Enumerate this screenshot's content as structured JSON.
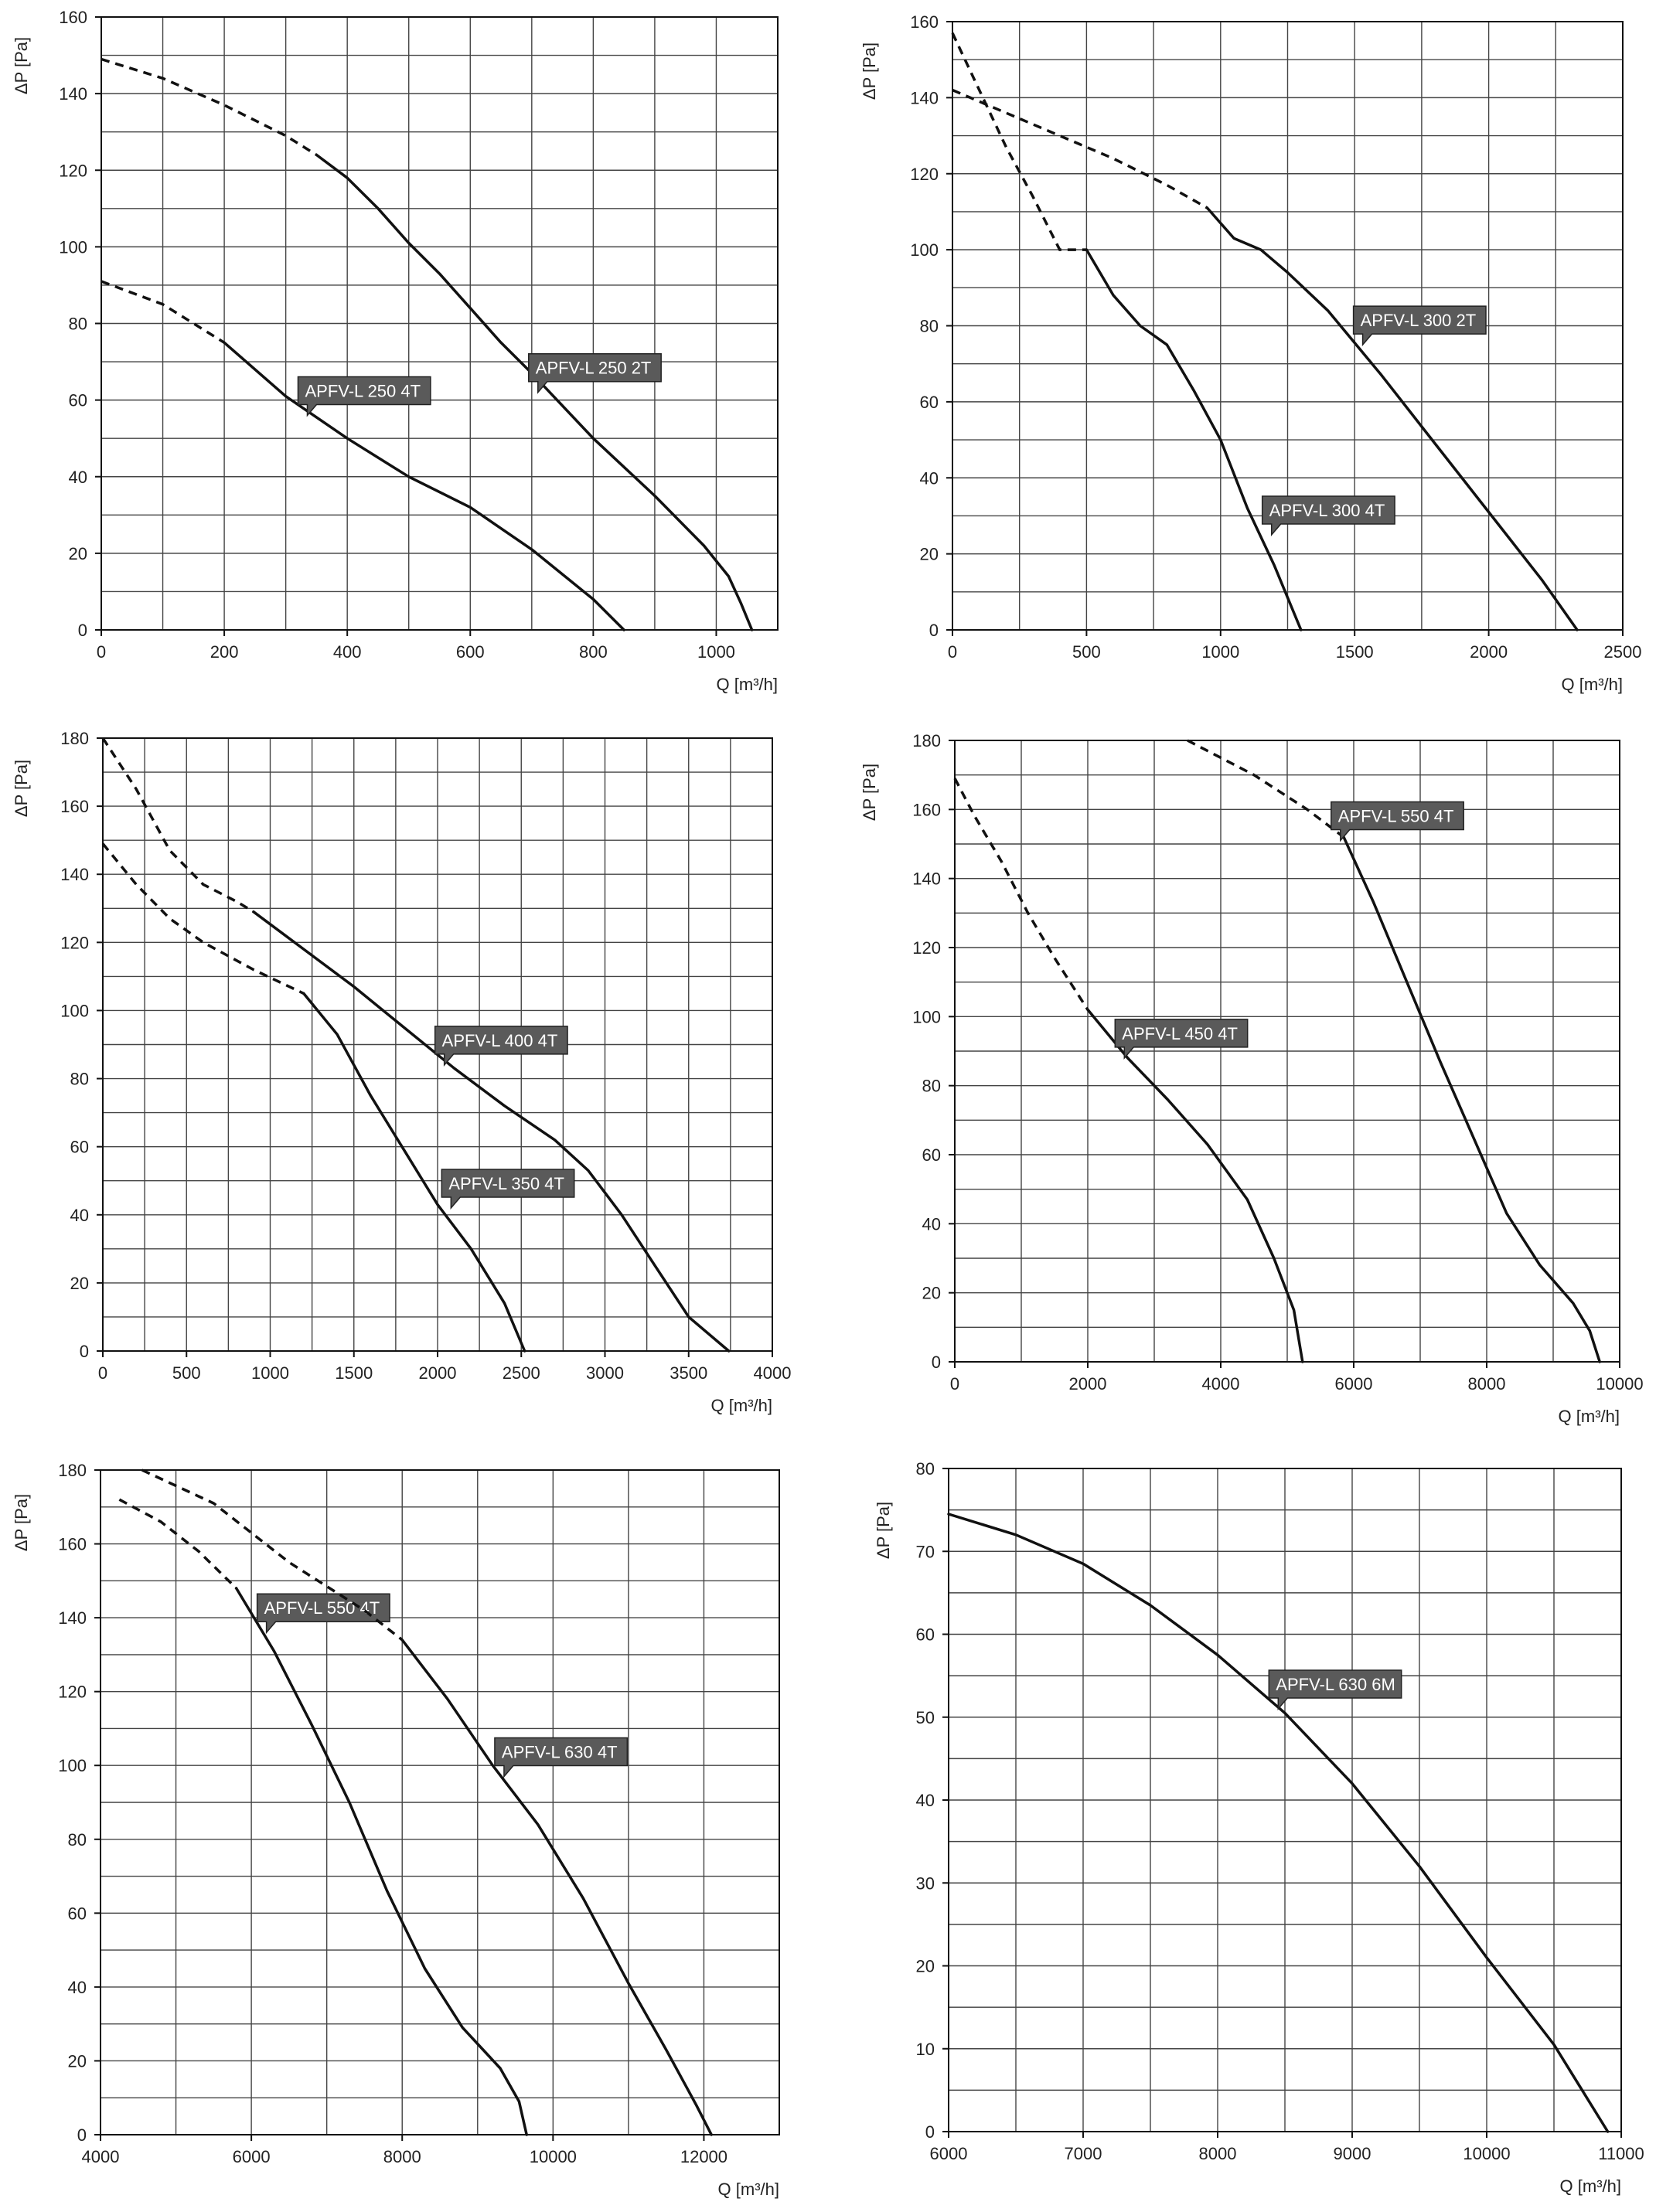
{
  "chart_data": [
    {
      "type": "line",
      "xlabel": "Q [m³/h]",
      "ylabel": "ΔP [Pa]",
      "xlim": [
        0,
        1100
      ],
      "ylim": [
        0,
        160
      ],
      "xticks": [
        0,
        200,
        400,
        600,
        800,
        1000
      ],
      "yticks": [
        0,
        20,
        40,
        60,
        80,
        100,
        120,
        140,
        160
      ],
      "grid": true,
      "series": [
        {
          "name": "APFV-L 250 2T",
          "dashed_points": [
            [
              0,
              149
            ],
            [
              100,
              144
            ],
            [
              200,
              137
            ],
            [
              300,
              129
            ],
            [
              350,
              124
            ]
          ],
          "points": [
            [
              350,
              124
            ],
            [
              400,
              118
            ],
            [
              450,
              110
            ],
            [
              500,
              101
            ],
            [
              550,
              93
            ],
            [
              600,
              84
            ],
            [
              650,
              75
            ],
            [
              700,
              67
            ],
            [
              800,
              50
            ],
            [
              900,
              35
            ],
            [
              980,
              22
            ],
            [
              1020,
              14
            ],
            [
              1040,
              7
            ],
            [
              1058,
              0
            ]
          ],
          "label_at": [
            710,
            62
          ]
        },
        {
          "name": "APFV-L 250 4T",
          "dashed_points": [
            [
              0,
              91
            ],
            [
              100,
              85
            ],
            [
              200,
              75
            ]
          ],
          "points": [
            [
              200,
              75
            ],
            [
              300,
              61
            ],
            [
              400,
              50
            ],
            [
              500,
              40
            ],
            [
              600,
              32
            ],
            [
              700,
              21
            ],
            [
              800,
              8
            ],
            [
              850,
              0
            ]
          ],
          "label_at": [
            335,
            56
          ]
        }
      ]
    },
    {
      "type": "line",
      "xlabel": "Q [m³/h]",
      "ylabel": "ΔP [Pa]",
      "xlim": [
        0,
        2500
      ],
      "ylim": [
        0,
        160
      ],
      "xticks": [
        0,
        500,
        1000,
        1500,
        2000,
        2500
      ],
      "yticks": [
        0,
        20,
        40,
        60,
        80,
        100,
        120,
        140,
        160
      ],
      "grid": true,
      "series": [
        {
          "name": "APFV-L 300 2T",
          "dashed_points": [
            [
              0,
              142
            ],
            [
              200,
              136
            ],
            [
              400,
              130
            ],
            [
              600,
              124
            ],
            [
              800,
              117
            ],
            [
              950,
              111
            ]
          ],
          "points": [
            [
              950,
              111
            ],
            [
              1050,
              103
            ],
            [
              1150,
              100
            ],
            [
              1250,
              94
            ],
            [
              1400,
              84
            ],
            [
              1600,
              67
            ],
            [
              1800,
              49
            ],
            [
              2000,
              31
            ],
            [
              2200,
              13
            ],
            [
              2330,
              0
            ]
          ],
          "label_at": [
            1530,
            75
          ]
        },
        {
          "name": "APFV-L 300 4T",
          "dashed_points": [
            [
              0,
              157
            ],
            [
              100,
              142
            ],
            [
              200,
              127
            ],
            [
              300,
              114
            ],
            [
              400,
              100
            ],
            [
              500,
              100
            ]
          ],
          "points": [
            [
              500,
              100
            ],
            [
              600,
              88
            ],
            [
              700,
              80
            ],
            [
              800,
              75
            ],
            [
              900,
              63
            ],
            [
              1000,
              50
            ],
            [
              1100,
              32
            ],
            [
              1200,
              17
            ],
            [
              1300,
              0
            ]
          ],
          "label_at": [
            1190,
            25
          ]
        }
      ]
    },
    {
      "type": "line",
      "xlabel": "Q [m³/h]",
      "ylabel": "ΔP [Pa]",
      "xlim": [
        0,
        4000
      ],
      "ylim": [
        0,
        180
      ],
      "xticks": [
        0,
        500,
        1000,
        1500,
        2000,
        2500,
        3000,
        3500,
        4000
      ],
      "yticks": [
        0,
        20,
        40,
        60,
        80,
        100,
        120,
        140,
        160,
        180
      ],
      "grid": true,
      "series": [
        {
          "name": "APFV-L 400 4T",
          "dashed_points": [
            [
              0,
              180
            ],
            [
              200,
              165
            ],
            [
              400,
              147
            ],
            [
              600,
              137
            ],
            [
              800,
              132
            ],
            [
              900,
              129
            ]
          ],
          "points": [
            [
              900,
              129
            ],
            [
              1200,
              118
            ],
            [
              1500,
              107
            ],
            [
              1800,
              95
            ],
            [
              2100,
              83
            ],
            [
              2400,
              72
            ],
            [
              2700,
              62
            ],
            [
              2900,
              53
            ],
            [
              3100,
              40
            ],
            [
              3300,
              25
            ],
            [
              3500,
              10
            ],
            [
              3740,
              0
            ]
          ],
          "label_at": [
            2040,
            84
          ]
        },
        {
          "name": "APFV-L 350 4T",
          "dashed_points": [
            [
              0,
              149
            ],
            [
              200,
              137
            ],
            [
              400,
              127
            ],
            [
              600,
              120
            ],
            [
              900,
              112
            ],
            [
              1200,
              105
            ]
          ],
          "points": [
            [
              1200,
              105
            ],
            [
              1400,
              93
            ],
            [
              1600,
              75
            ],
            [
              1800,
              59
            ],
            [
              2000,
              43
            ],
            [
              2200,
              30
            ],
            [
              2400,
              14
            ],
            [
              2520,
              0
            ]
          ],
          "label_at": [
            2080,
            42
          ]
        }
      ]
    },
    {
      "type": "line",
      "xlabel": "Q [m³/h]",
      "ylabel": "ΔP [Pa]",
      "xlim": [
        0,
        10000
      ],
      "ylim": [
        0,
        180
      ],
      "xticks": [
        0,
        2000,
        4000,
        6000,
        8000,
        10000
      ],
      "yticks": [
        0,
        20,
        40,
        60,
        80,
        100,
        120,
        140,
        160,
        180
      ],
      "grid": true,
      "series": [
        {
          "name": "APFV-L 550 4T",
          "dashed_points": [
            [
              3500,
              180
            ],
            [
              4500,
              170
            ],
            [
              5300,
              160
            ],
            [
              5850,
              152
            ]
          ],
          "points": [
            [
              5850,
              152
            ],
            [
              6300,
              133
            ],
            [
              6800,
              110
            ],
            [
              7300,
              87
            ],
            [
              7800,
              65
            ],
            [
              8300,
              43
            ],
            [
              8800,
              28
            ],
            [
              9300,
              17
            ],
            [
              9550,
              9
            ],
            [
              9700,
              0
            ]
          ],
          "label_at": [
            5800,
            151
          ]
        },
        {
          "name": "APFV-L 450 4T",
          "dashed_points": [
            [
              0,
              169
            ],
            [
              300,
              158
            ],
            [
              700,
              145
            ],
            [
              1100,
              130
            ],
            [
              1500,
              117
            ],
            [
              2000,
              102
            ]
          ],
          "points": [
            [
              2000,
              102
            ],
            [
              2600,
              88
            ],
            [
              3200,
              76
            ],
            [
              3800,
              63
            ],
            [
              4400,
              47
            ],
            [
              4800,
              30
            ],
            [
              5100,
              15
            ],
            [
              5230,
              0
            ]
          ],
          "label_at": [
            2550,
            88
          ]
        }
      ]
    },
    {
      "type": "line",
      "xlabel": "Q [m³/h]",
      "ylabel": "ΔP [Pa]",
      "xlim": [
        4000,
        13000
      ],
      "ylim": [
        0,
        180
      ],
      "xticks": [
        4000,
        6000,
        8000,
        10000,
        12000
      ],
      "yticks": [
        0,
        20,
        40,
        60,
        80,
        100,
        120,
        140,
        160,
        180
      ],
      "grid": true,
      "series": [
        {
          "name": "APFV-L 550 4T",
          "dashed_points": [
            [
              4250,
              172
            ],
            [
              4800,
              166
            ],
            [
              5300,
              158
            ],
            [
              5800,
              148
            ]
          ],
          "points": [
            [
              5800,
              148
            ],
            [
              6300,
              131
            ],
            [
              6800,
              111
            ],
            [
              7300,
              90
            ],
            [
              7800,
              66
            ],
            [
              8300,
              45
            ],
            [
              8800,
              29
            ],
            [
              9300,
              18
            ],
            [
              9550,
              9
            ],
            [
              9650,
              0
            ]
          ],
          "label_at": [
            6200,
            136
          ]
        },
        {
          "name": "APFV-L 630 4T",
          "dashed_points": [
            [
              4550,
              180
            ],
            [
              5500,
              171
            ],
            [
              6500,
              155
            ],
            [
              7500,
              142
            ],
            [
              8000,
              134
            ]
          ],
          "points": [
            [
              8000,
              134
            ],
            [
              8600,
              118
            ],
            [
              9200,
              100
            ],
            [
              9800,
              84
            ],
            [
              10400,
              64
            ],
            [
              11000,
              41
            ],
            [
              11500,
              23
            ],
            [
              11900,
              8
            ],
            [
              12100,
              0
            ]
          ],
          "label_at": [
            9350,
            97
          ]
        }
      ]
    },
    {
      "type": "line",
      "xlabel": "Q [m³/h]",
      "ylabel": "ΔP [Pa]",
      "xlim": [
        6000,
        11000
      ],
      "ylim": [
        0,
        80
      ],
      "xticks": [
        6000,
        7000,
        8000,
        9000,
        10000,
        11000
      ],
      "yticks": [
        0,
        10,
        20,
        30,
        40,
        50,
        60,
        70,
        80
      ],
      "grid": true,
      "series": [
        {
          "name": "APFV-L 630 6M",
          "dashed_points": [],
          "points": [
            [
              6000,
              74.5
            ],
            [
              6500,
              72
            ],
            [
              7000,
              68.5
            ],
            [
              7500,
              63.5
            ],
            [
              8000,
              57.5
            ],
            [
              8500,
              50.5
            ],
            [
              9000,
              42
            ],
            [
              9500,
              32
            ],
            [
              10000,
              21
            ],
            [
              10500,
              10.5
            ],
            [
              10900,
              0
            ]
          ],
          "label_at": [
            8450,
            51
          ]
        }
      ]
    }
  ]
}
